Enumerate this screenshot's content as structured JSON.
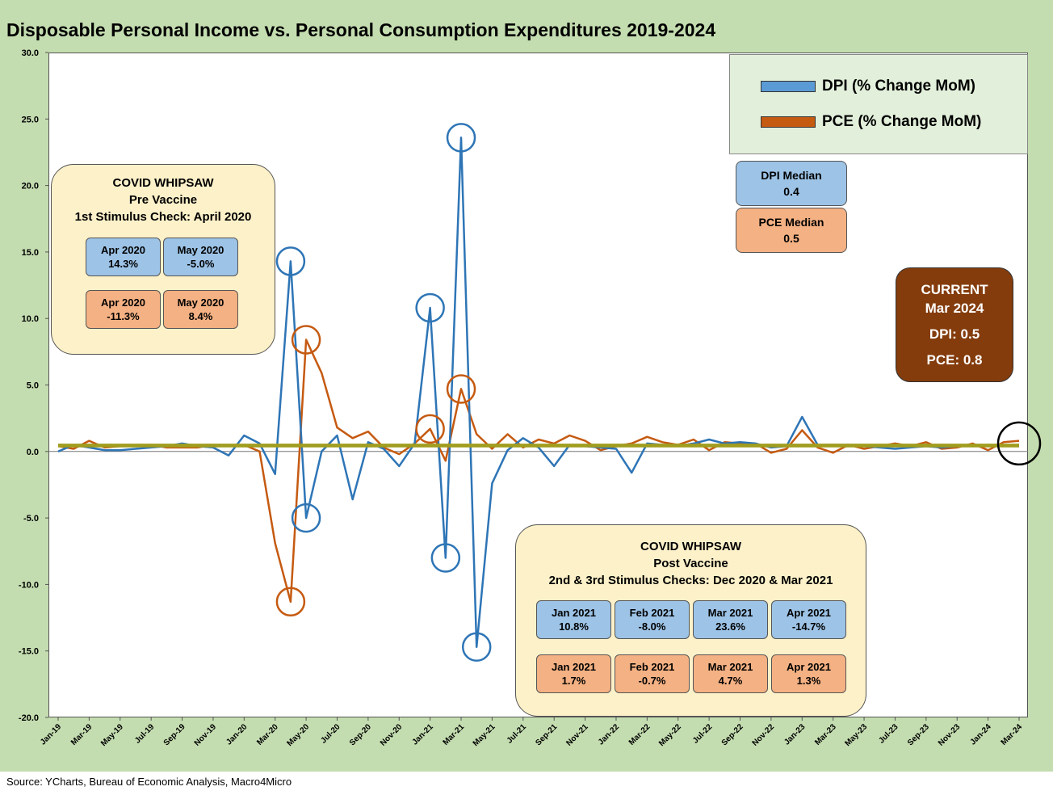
{
  "title": "Disposable Personal Income vs. Personal Consumption Expenditures 2019-2024",
  "source": "Source: YCharts, Bureau of Economic Analysis, Macro4Micro",
  "legend": [
    {
      "label": "DPI (% Change MoM)",
      "color": "#2e75b6"
    },
    {
      "label": "PCE (% Change MoM)",
      "color": "#c55a11"
    }
  ],
  "medians": {
    "dpi": {
      "label": "DPI Median",
      "value": "0.4"
    },
    "pce": {
      "label": "PCE Median",
      "value": "0.5"
    }
  },
  "current": {
    "line1": "CURRENT",
    "line2": "Mar 2024",
    "dpi": "DPI: 0.5",
    "pce": "PCE: 0.8"
  },
  "callout_pre": {
    "line1": "COVID WHIPSAW",
    "line2": "Pre Vaccine",
    "line3": "1st Stimulus Check: April 2020",
    "dpi": [
      {
        "month": "Apr 2020",
        "value": "14.3%"
      },
      {
        "month": "May 2020",
        "value": "-5.0%"
      }
    ],
    "pce": [
      {
        "month": "Apr 2020",
        "value": "-11.3%"
      },
      {
        "month": "May 2020",
        "value": "8.4%"
      }
    ]
  },
  "callout_post": {
    "line1": "COVID WHIPSAW",
    "line2": "Post Vaccine",
    "line3": "2nd & 3rd Stimulus Checks: Dec 2020 & Mar 2021",
    "dpi": [
      {
        "month": "Jan 2021",
        "value": "10.8%"
      },
      {
        "month": "Feb 2021",
        "value": "-8.0%"
      },
      {
        "month": "Mar 2021",
        "value": "23.6%"
      },
      {
        "month": "Apr 2021",
        "value": "-14.7%"
      }
    ],
    "pce": [
      {
        "month": "Jan 2021",
        "value": "1.7%"
      },
      {
        "month": "Feb 2021",
        "value": "-0.7%"
      },
      {
        "month": "Mar 2021",
        "value": "4.7%"
      },
      {
        "month": "Apr 2021",
        "value": "1.3%"
      }
    ]
  },
  "chart_data": {
    "type": "line",
    "title": "Disposable Personal Income vs. Personal Consumption Expenditures 2019-2024",
    "xlabel": "",
    "ylabel": "",
    "ylim": [
      -20,
      30
    ],
    "yticks": [
      "30.0",
      "25.0",
      "20.0",
      "15.0",
      "10.0",
      "5.0",
      "0.0",
      "-5.0",
      "-10.0",
      "-15.0",
      "-20.0"
    ],
    "grid": false,
    "legend_position": "top-right",
    "x": [
      "Jan-19",
      "Feb-19",
      "Mar-19",
      "Apr-19",
      "May-19",
      "Jun-19",
      "Jul-19",
      "Aug-19",
      "Sep-19",
      "Oct-19",
      "Nov-19",
      "Dec-19",
      "Jan-20",
      "Feb-20",
      "Mar-20",
      "Apr-20",
      "May-20",
      "Jun-20",
      "Jul-20",
      "Aug-20",
      "Sep-20",
      "Oct-20",
      "Nov-20",
      "Dec-20",
      "Jan-21",
      "Feb-21",
      "Mar-21",
      "Apr-21",
      "May-21",
      "Jun-21",
      "Jul-21",
      "Aug-21",
      "Sep-21",
      "Oct-21",
      "Nov-21",
      "Dec-21",
      "Jan-22",
      "Feb-22",
      "Mar-22",
      "Apr-22",
      "May-22",
      "Jun-22",
      "Jul-22",
      "Aug-22",
      "Sep-22",
      "Oct-22",
      "Nov-22",
      "Dec-22",
      "Jan-23",
      "Feb-23",
      "Mar-23",
      "Apr-23",
      "May-23",
      "Jun-23",
      "Jul-23",
      "Aug-23",
      "Sep-23",
      "Oct-23",
      "Nov-23",
      "Dec-23",
      "Jan-24",
      "Feb-24",
      "Mar-24"
    ],
    "xtick_labels": [
      "Jan-19",
      "Mar-19",
      "May-19",
      "Jul-19",
      "Sep-19",
      "Nov-19",
      "Jan-20",
      "Mar-20",
      "May-20",
      "Jul-20",
      "Sep-20",
      "Nov-20",
      "Jan-21",
      "Mar-21",
      "May-21",
      "Jul-21",
      "Sep-21",
      "Nov-21",
      "Jan-22",
      "Mar-22",
      "May-22",
      "Jul-22",
      "Sep-22",
      "Nov-22",
      "Jan-23",
      "Mar-23",
      "May-23",
      "Jul-23",
      "Sep-23",
      "Nov-23",
      "Jan-24",
      "Mar-24"
    ],
    "series": [
      {
        "name": "DPI (% Change MoM)",
        "color": "#2e75b6",
        "values": [
          0.0,
          0.5,
          0.3,
          0.1,
          0.1,
          0.2,
          0.3,
          0.4,
          0.6,
          0.4,
          0.3,
          -0.3,
          1.2,
          0.6,
          -1.7,
          14.3,
          -5.0,
          0.0,
          1.2,
          -3.6,
          0.7,
          0.2,
          -1.1,
          0.6,
          10.8,
          -8.0,
          23.6,
          -14.7,
          -2.4,
          0.1,
          1.0,
          0.3,
          -1.1,
          0.5,
          0.4,
          0.3,
          0.2,
          -1.6,
          0.6,
          0.5,
          0.4,
          0.6,
          0.9,
          0.6,
          0.7,
          0.6,
          0.3,
          0.4,
          2.6,
          0.5,
          0.5,
          0.5,
          0.4,
          0.3,
          0.2,
          0.3,
          0.4,
          0.3,
          0.4,
          0.4,
          0.5,
          0.4,
          0.5
        ]
      },
      {
        "name": "PCE (% Change MoM)",
        "color": "#c55a11",
        "values": [
          0.4,
          0.2,
          0.8,
          0.3,
          0.4,
          0.4,
          0.5,
          0.3,
          0.3,
          0.3,
          0.5,
          0.4,
          0.5,
          0.0,
          -6.9,
          -11.3,
          8.4,
          5.9,
          1.8,
          1.0,
          1.5,
          0.3,
          -0.2,
          0.6,
          1.7,
          -0.7,
          4.7,
          1.3,
          0.2,
          1.3,
          0.3,
          0.9,
          0.6,
          1.2,
          0.8,
          0.1,
          0.4,
          0.6,
          1.1,
          0.7,
          0.5,
          0.9,
          0.1,
          0.7,
          0.6,
          0.6,
          -0.1,
          0.2,
          1.6,
          0.3,
          -0.1,
          0.5,
          0.2,
          0.4,
          0.6,
          0.4,
          0.7,
          0.2,
          0.3,
          0.6,
          0.1,
          0.7,
          0.8
        ]
      },
      {
        "name": "DPI Median",
        "color": "#a19d1e",
        "values_constant": 0.4
      },
      {
        "name": "PCE Median",
        "color": "#a19d1e",
        "values_constant": 0.5
      }
    ]
  }
}
